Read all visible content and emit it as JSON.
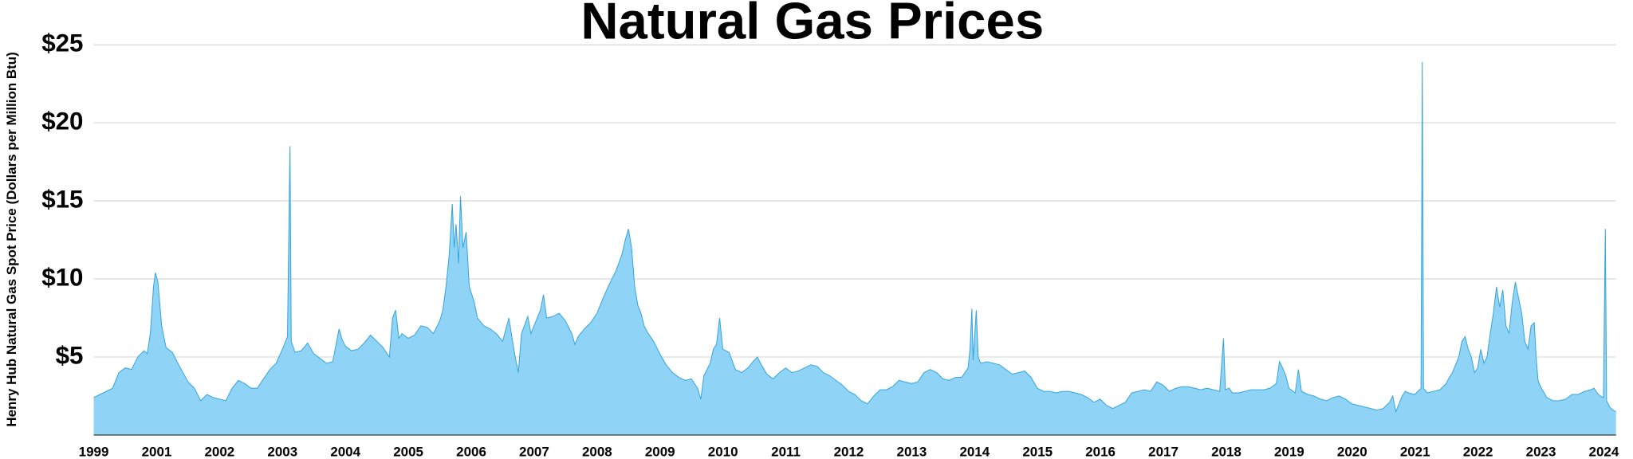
{
  "chart_data": {
    "type": "area",
    "title": "Natural Gas Prices",
    "y_label": "Henry Hub Natural Gas Spot Price (Dollars per Million Btu)",
    "xlim": [
      2000,
      2024.2
    ],
    "xtick_labels": [
      "1999",
      "2001",
      "2002",
      "2003",
      "2004",
      "2005",
      "2006",
      "2007",
      "2008",
      "2009",
      "2010",
      "2011",
      "2012",
      "2013",
      "2014",
      "2015",
      "2016",
      "2017",
      "2018",
      "2019",
      "2020",
      "2021",
      "2022",
      "2023",
      "2024"
    ],
    "ylim": [
      0,
      25
    ],
    "yticks": [
      {
        "value": 5,
        "label": "$5"
      },
      {
        "value": 10,
        "label": "$10"
      },
      {
        "value": 15,
        "label": "$15"
      },
      {
        "value": 20,
        "label": "$20"
      },
      {
        "value": 25,
        "label": "$25"
      }
    ],
    "grid": true,
    "color": "#8fd3f7",
    "line_color": "#3aa7dc",
    "x": [
      2000.0,
      2000.1,
      2000.2,
      2000.3,
      2000.4,
      2000.5,
      2000.6,
      2000.7,
      2000.8,
      2000.85,
      2000.9,
      2000.95,
      2000.98,
      2001.02,
      2001.08,
      2001.15,
      2001.25,
      2001.35,
      2001.5,
      2001.6,
      2001.7,
      2001.8,
      2001.9,
      2002.0,
      2002.1,
      2002.2,
      2002.3,
      2002.4,
      2002.5,
      2002.6,
      2002.7,
      2002.8,
      2002.9,
      2003.0,
      2003.08,
      2003.12,
      2003.14,
      2003.2,
      2003.3,
      2003.4,
      2003.5,
      2003.6,
      2003.7,
      2003.8,
      2003.9,
      2003.95,
      2004.0,
      2004.1,
      2004.2,
      2004.3,
      2004.4,
      2004.5,
      2004.6,
      2004.7,
      2004.75,
      2004.8,
      2004.85,
      2004.9,
      2005.0,
      2005.1,
      2005.2,
      2005.3,
      2005.4,
      2005.5,
      2005.55,
      2005.6,
      2005.65,
      2005.7,
      2005.73,
      2005.76,
      2005.8,
      2005.83,
      2005.87,
      2005.92,
      2005.97,
      2006.05,
      2006.1,
      2006.2,
      2006.3,
      2006.4,
      2006.5,
      2006.6,
      2006.65,
      2006.7,
      2006.75,
      2006.8,
      2006.9,
      2006.95,
      2007.0,
      2007.1,
      2007.15,
      2007.2,
      2007.3,
      2007.4,
      2007.5,
      2007.6,
      2007.65,
      2007.7,
      2007.8,
      2007.9,
      2008.0,
      2008.1,
      2008.2,
      2008.3,
      2008.4,
      2008.45,
      2008.5,
      2008.55,
      2008.6,
      2008.65,
      2008.7,
      2008.75,
      2008.8,
      2008.9,
      2009.0,
      2009.1,
      2009.2,
      2009.3,
      2009.4,
      2009.5,
      2009.6,
      2009.65,
      2009.7,
      2009.8,
      2009.85,
      2009.9,
      2009.95,
      2010.0,
      2010.1,
      2010.2,
      2010.3,
      2010.4,
      2010.5,
      2010.55,
      2010.6,
      2010.7,
      2010.8,
      2010.9,
      2011.0,
      2011.1,
      2011.2,
      2011.3,
      2011.4,
      2011.5,
      2011.6,
      2011.7,
      2011.8,
      2011.9,
      2012.0,
      2012.1,
      2012.2,
      2012.3,
      2012.4,
      2012.5,
      2012.6,
      2012.7,
      2012.8,
      2012.9,
      2013.0,
      2013.1,
      2013.2,
      2013.3,
      2013.4,
      2013.5,
      2013.6,
      2013.7,
      2013.8,
      2013.9,
      2013.93,
      2013.96,
      2013.98,
      2014.03,
      2014.06,
      2014.1,
      2014.2,
      2014.3,
      2014.4,
      2014.5,
      2014.6,
      2014.7,
      2014.8,
      2014.9,
      2015.0,
      2015.1,
      2015.2,
      2015.3,
      2015.4,
      2015.5,
      2015.6,
      2015.7,
      2015.8,
      2015.9,
      2016.0,
      2016.1,
      2016.2,
      2016.3,
      2016.4,
      2016.5,
      2016.6,
      2016.7,
      2016.8,
      2016.9,
      2017.0,
      2017.1,
      2017.2,
      2017.3,
      2017.4,
      2017.5,
      2017.6,
      2017.7,
      2017.8,
      2017.9,
      2017.96,
      2017.99,
      2018.05,
      2018.1,
      2018.2,
      2018.3,
      2018.4,
      2018.5,
      2018.6,
      2018.7,
      2018.8,
      2018.85,
      2018.9,
      2018.95,
      2019.0,
      2019.1,
      2019.15,
      2019.2,
      2019.3,
      2019.4,
      2019.5,
      2019.6,
      2019.7,
      2019.8,
      2019.9,
      2020.0,
      2020.1,
      2020.2,
      2020.3,
      2020.4,
      2020.5,
      2020.6,
      2020.65,
      2020.7,
      2020.8,
      2020.85,
      2020.9,
      2021.0,
      2021.05,
      2021.1,
      2021.12,
      2021.14,
      2021.2,
      2021.3,
      2021.4,
      2021.5,
      2021.55,
      2021.6,
      2021.65,
      2021.7,
      2021.75,
      2021.8,
      2021.85,
      2021.9,
      2021.95,
      2022.0,
      2022.05,
      2022.1,
      2022.15,
      2022.2,
      2022.25,
      2022.3,
      2022.35,
      2022.4,
      2022.45,
      2022.5,
      2022.55,
      2022.6,
      2022.65,
      2022.7,
      2022.75,
      2022.8,
      2022.85,
      2022.9,
      2022.93,
      2022.96,
      2023.0,
      2023.1,
      2023.2,
      2023.3,
      2023.4,
      2023.5,
      2023.6,
      2023.7,
      2023.8,
      2023.85,
      2023.9,
      2023.95,
      2024.0,
      2024.03,
      2024.05,
      2024.1,
      2024.15,
      2024.2
    ],
    "values": [
      2.4,
      2.6,
      2.8,
      3.0,
      4.0,
      4.3,
      4.2,
      5.0,
      5.4,
      5.2,
      6.5,
      9.5,
      10.4,
      9.8,
      7.0,
      5.6,
      5.3,
      4.5,
      3.4,
      3.0,
      2.2,
      2.6,
      2.4,
      2.3,
      2.2,
      3.0,
      3.5,
      3.3,
      3.0,
      3.0,
      3.6,
      4.2,
      4.6,
      5.5,
      6.3,
      18.5,
      6.0,
      5.3,
      5.4,
      5.9,
      5.2,
      4.9,
      4.6,
      4.7,
      6.8,
      6.1,
      5.7,
      5.4,
      5.5,
      5.9,
      6.4,
      6.0,
      5.6,
      5.0,
      7.5,
      8.0,
      6.2,
      6.5,
      6.2,
      6.4,
      7.0,
      6.9,
      6.5,
      7.3,
      8.0,
      9.5,
      11.5,
      14.8,
      12.0,
      13.5,
      11.0,
      15.3,
      12.0,
      13.0,
      9.5,
      8.5,
      7.5,
      7.0,
      6.8,
      6.5,
      6.0,
      7.5,
      6.2,
      5.0,
      4.0,
      6.5,
      7.6,
      6.5,
      7.0,
      8.0,
      9.0,
      7.5,
      7.6,
      7.8,
      7.3,
      6.5,
      5.8,
      6.3,
      6.8,
      7.2,
      7.8,
      8.8,
      9.7,
      10.5,
      11.6,
      12.5,
      13.2,
      12.0,
      9.5,
      8.3,
      7.8,
      7.0,
      6.6,
      6.0,
      5.2,
      4.5,
      4.0,
      3.7,
      3.5,
      3.6,
      3.0,
      2.3,
      3.8,
      4.6,
      5.5,
      5.8,
      7.5,
      5.5,
      5.3,
      4.2,
      4.0,
      4.3,
      4.8,
      5.0,
      4.6,
      3.9,
      3.6,
      4.0,
      4.3,
      4.0,
      4.1,
      4.3,
      4.5,
      4.4,
      4.0,
      3.8,
      3.5,
      3.2,
      2.8,
      2.6,
      2.2,
      2.0,
      2.5,
      2.9,
      2.9,
      3.1,
      3.5,
      3.4,
      3.3,
      3.4,
      4.0,
      4.2,
      4.0,
      3.6,
      3.5,
      3.7,
      3.7,
      4.3,
      5.5,
      8.1,
      4.8,
      8.0,
      5.0,
      4.6,
      4.7,
      4.6,
      4.5,
      4.2,
      3.9,
      4.0,
      4.1,
      3.7,
      3.0,
      2.8,
      2.8,
      2.7,
      2.8,
      2.8,
      2.7,
      2.6,
      2.4,
      2.1,
      2.3,
      1.9,
      1.7,
      1.9,
      2.1,
      2.7,
      2.8,
      2.9,
      2.8,
      3.4,
      3.2,
      2.8,
      3.0,
      3.1,
      3.1,
      3.0,
      2.9,
      3.0,
      2.9,
      2.8,
      6.2,
      2.9,
      3.0,
      2.7,
      2.7,
      2.8,
      2.9,
      2.9,
      2.9,
      3.0,
      3.3,
      4.7,
      4.3,
      3.8,
      3.0,
      2.7,
      4.2,
      2.8,
      2.6,
      2.5,
      2.3,
      2.2,
      2.4,
      2.5,
      2.3,
      2.0,
      1.9,
      1.8,
      1.7,
      1.6,
      1.7,
      2.1,
      2.5,
      1.5,
      2.5,
      2.8,
      2.7,
      2.6,
      2.8,
      3.0,
      23.9,
      3.0,
      2.7,
      2.8,
      2.9,
      3.3,
      3.7,
      4.0,
      4.5,
      5.0,
      6.0,
      6.3,
      5.5,
      5.0,
      4.0,
      4.3,
      5.5,
      4.6,
      5.0,
      6.5,
      7.8,
      9.5,
      8.2,
      9.3,
      7.0,
      6.5,
      8.5,
      9.8,
      8.8,
      7.8,
      6.0,
      5.5,
      7.0,
      7.2,
      5.0,
      3.5,
      3.1,
      2.4,
      2.2,
      2.2,
      2.3,
      2.6,
      2.6,
      2.8,
      2.9,
      3.0,
      2.7,
      2.5,
      2.4,
      13.2,
      2.2,
      1.8,
      1.6,
      1.5
    ]
  }
}
